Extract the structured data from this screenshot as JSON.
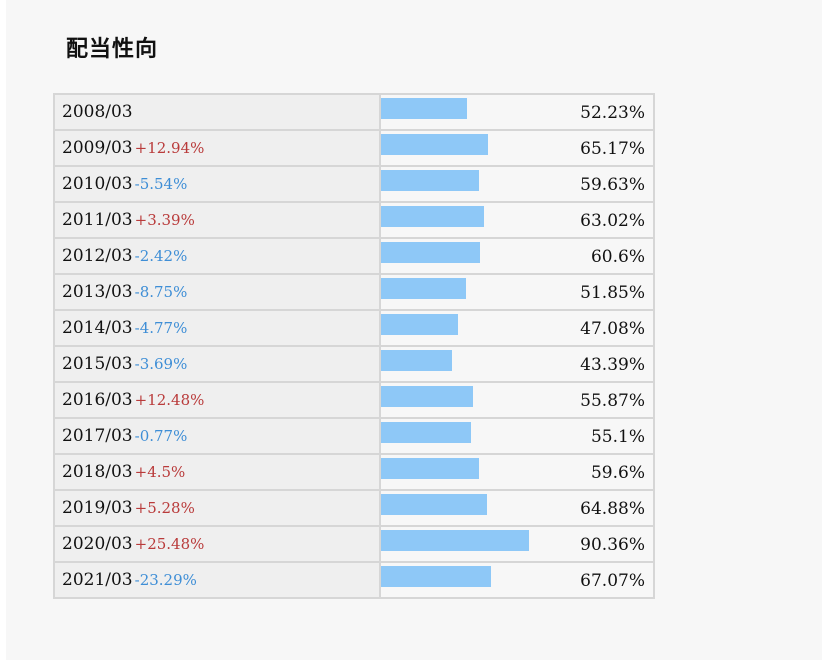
{
  "title": "配当性向",
  "chart_data": {
    "type": "bar",
    "unit": "%",
    "categories": [
      "2008/03",
      "2009/03",
      "2010/03",
      "2011/03",
      "2012/03",
      "2013/03",
      "2014/03",
      "2015/03",
      "2016/03",
      "2017/03",
      "2018/03",
      "2019/03",
      "2020/03",
      "2021/03"
    ],
    "values": [
      52.23,
      65.17,
      59.63,
      63.02,
      60.6,
      51.85,
      47.08,
      43.39,
      55.87,
      55.1,
      59.6,
      64.88,
      90.36,
      67.07
    ],
    "rows": [
      {
        "year": "2008/03",
        "change": "",
        "dir": "",
        "value": 52.23,
        "label": "52.23%"
      },
      {
        "year": "2009/03",
        "change": "+12.94%",
        "dir": "up",
        "value": 65.17,
        "label": "65.17%"
      },
      {
        "year": "2010/03",
        "change": "-5.54%",
        "dir": "down",
        "value": 59.63,
        "label": "59.63%"
      },
      {
        "year": "2011/03",
        "change": "+3.39%",
        "dir": "up",
        "value": 63.02,
        "label": "63.02%"
      },
      {
        "year": "2012/03",
        "change": "-2.42%",
        "dir": "down",
        "value": 60.6,
        "label": "60.6%"
      },
      {
        "year": "2013/03",
        "change": "-8.75%",
        "dir": "down",
        "value": 51.85,
        "label": "51.85%"
      },
      {
        "year": "2014/03",
        "change": "-4.77%",
        "dir": "down",
        "value": 47.08,
        "label": "47.08%"
      },
      {
        "year": "2015/03",
        "change": "-3.69%",
        "dir": "down",
        "value": 43.39,
        "label": "43.39%"
      },
      {
        "year": "2016/03",
        "change": "+12.48%",
        "dir": "up",
        "value": 55.87,
        "label": "55.87%"
      },
      {
        "year": "2017/03",
        "change": "-0.77%",
        "dir": "down",
        "value": 55.1,
        "label": "55.1%"
      },
      {
        "year": "2018/03",
        "change": "+4.5%",
        "dir": "up",
        "value": 59.6,
        "label": "59.6%"
      },
      {
        "year": "2019/03",
        "change": "+5.28%",
        "dir": "up",
        "value": 64.88,
        "label": "64.88%"
      },
      {
        "year": "2020/03",
        "change": "+25.48%",
        "dir": "up",
        "value": 90.36,
        "label": "90.36%"
      },
      {
        "year": "2021/03",
        "change": "-23.29%",
        "dir": "down",
        "value": 67.07,
        "label": "67.07%"
      }
    ]
  },
  "colors": {
    "bar": "#8ec8f7",
    "increase": "#b93b3b",
    "decrease": "#3e8ed6",
    "year_cell_bg": "#efefef",
    "grid": "#d6d6d6"
  }
}
